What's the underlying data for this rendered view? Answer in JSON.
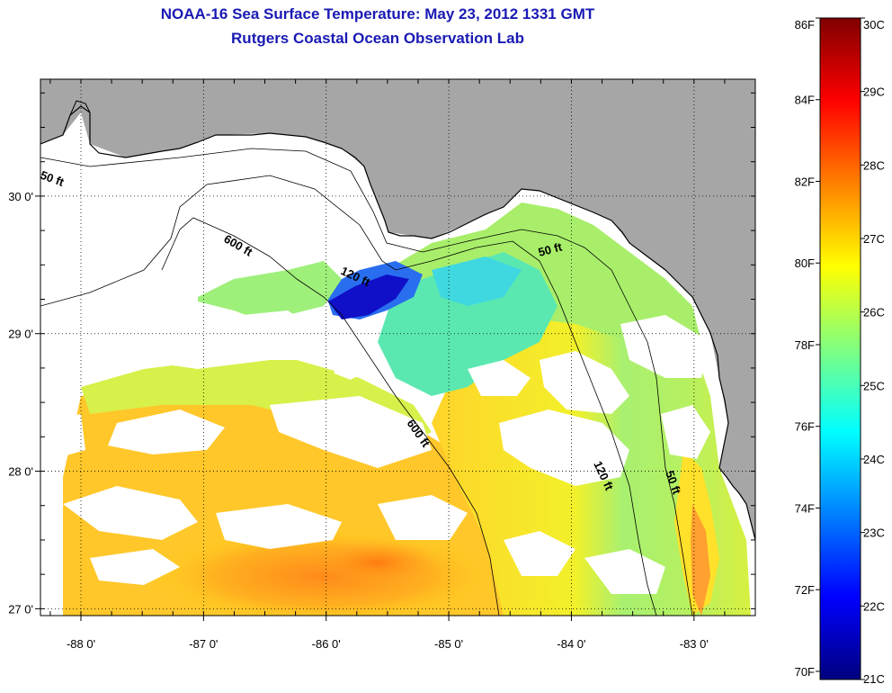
{
  "header": {
    "title": "NOAA-16 Sea Surface Temperature:  May 23, 2012 1331 GMT",
    "subtitle": "Rutgers Coastal Ocean Observation Lab"
  },
  "map": {
    "lon_range": [
      -88.33,
      -82.5
    ],
    "lat_range": [
      26.95,
      30.85
    ],
    "x_ticks": [
      {
        "value": -88,
        "label": "-88 0'"
      },
      {
        "value": -87,
        "label": "-87 0'"
      },
      {
        "value": -86,
        "label": "-86 0'"
      },
      {
        "value": -85,
        "label": "-85 0'"
      },
      {
        "value": -84,
        "label": "-84 0'"
      },
      {
        "value": -83,
        "label": "-83 0'"
      }
    ],
    "y_ticks": [
      {
        "value": 30,
        "label": "30 0'"
      },
      {
        "value": 29,
        "label": "29 0'"
      },
      {
        "value": 28,
        "label": "28 0'"
      },
      {
        "value": 27,
        "label": "27 0'"
      }
    ],
    "depth_labels": [
      {
        "text": "50 ft"
      },
      {
        "text": "600 ft"
      },
      {
        "text": "120 ft"
      },
      {
        "text": "50 ft"
      },
      {
        "text": "600 ft"
      },
      {
        "text": "120 ft"
      },
      {
        "text": "50 ft"
      }
    ],
    "colors": {
      "land": "#a6a6a6",
      "cloud": "#ffffff",
      "coastline": "#000000"
    }
  },
  "colorbar": {
    "fahrenheit_labels": [
      "86F",
      "84F",
      "82F",
      "80F",
      "78F",
      "76F",
      "74F",
      "72F",
      "70F"
    ],
    "celsius_labels": [
      "30C",
      "29C",
      "28C",
      "27C",
      "26C",
      "25C",
      "24C",
      "23C",
      "22C",
      "21C"
    ],
    "range_c": [
      21,
      30
    ],
    "gradient": [
      "#00007f",
      "#0000ff",
      "#0080ff",
      "#00ffff",
      "#80ff80",
      "#ffff00",
      "#ff8000",
      "#ff0000",
      "#7f0000"
    ]
  }
}
